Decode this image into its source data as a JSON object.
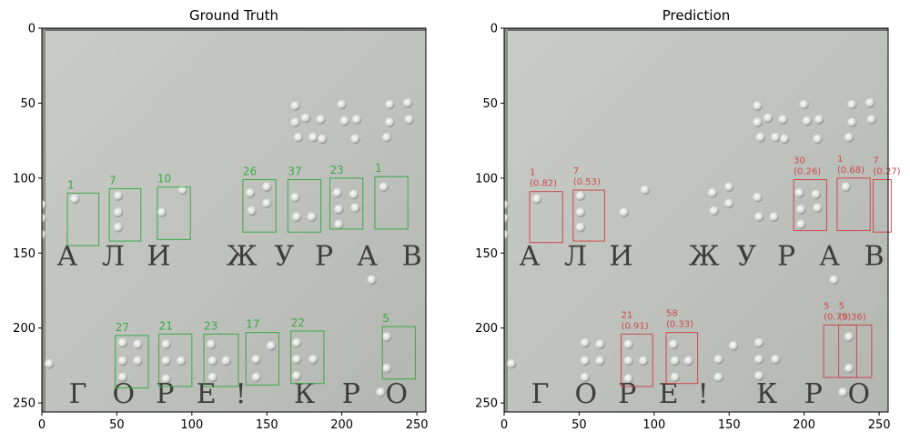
{
  "panels": [
    {
      "title": "Ground Truth",
      "box_color": "#3caa46",
      "boxes": [
        {
          "x0": 17,
          "y0": 110,
          "x1": 38,
          "y1": 145,
          "label": "1"
        },
        {
          "x0": 45,
          "y0": 107,
          "x1": 66,
          "y1": 142,
          "label": "7"
        },
        {
          "x0": 77,
          "y0": 106,
          "x1": 99,
          "y1": 141,
          "label": "10"
        },
        {
          "x0": 134,
          "y0": 101,
          "x1": 156,
          "y1": 136,
          "label": "26"
        },
        {
          "x0": 164,
          "y0": 101,
          "x1": 186,
          "y1": 136,
          "label": "37"
        },
        {
          "x0": 192,
          "y0": 100,
          "x1": 214,
          "y1": 134,
          "label": "23"
        },
        {
          "x0": 222,
          "y0": 99,
          "x1": 244,
          "y1": 134,
          "label": "1"
        },
        {
          "x0": 49,
          "y0": 205,
          "x1": 71,
          "y1": 240,
          "label": "27"
        },
        {
          "x0": 78,
          "y0": 204,
          "x1": 100,
          "y1": 239,
          "label": "21"
        },
        {
          "x0": 108,
          "y0": 204,
          "x1": 131,
          "y1": 239,
          "label": "23"
        },
        {
          "x0": 136,
          "y0": 203,
          "x1": 158,
          "y1": 238,
          "label": "17"
        },
        {
          "x0": 166,
          "y0": 202,
          "x1": 188,
          "y1": 237,
          "label": "22"
        },
        {
          "x0": 227,
          "y0": 199,
          "x1": 249,
          "y1": 234,
          "label": "5"
        }
      ]
    },
    {
      "title": "Prediction",
      "box_color": "#cc4b4b",
      "boxes": [
        {
          "x0": 17,
          "y0": 109,
          "x1": 39,
          "y1": 143,
          "label": "1\n(0.82)"
        },
        {
          "x0": 46,
          "y0": 108,
          "x1": 67,
          "y1": 142,
          "label": "7\n(0.53)"
        },
        {
          "x0": 78,
          "y0": 204,
          "x1": 99,
          "y1": 239,
          "label": "21\n(0.91)"
        },
        {
          "x0": 108,
          "y0": 203,
          "x1": 129,
          "y1": 237,
          "label": "58\n(0.33)"
        },
        {
          "x0": 193,
          "y0": 101,
          "x1": 215,
          "y1": 135,
          "label": "30\n(0.26)"
        },
        {
          "x0": 222,
          "y0": 100,
          "x1": 244,
          "y1": 135,
          "label": "1\n(0.68)"
        },
        {
          "x0": 246,
          "y0": 101,
          "x1": 258,
          "y1": 136,
          "label": "7\n(0.27)"
        },
        {
          "x0": 213,
          "y0": 198,
          "x1": 235,
          "y1": 233,
          "label": "5\n(0.75)"
        },
        {
          "x0": 223,
          "y0": 198,
          "x1": 245,
          "y1": 233,
          "label": "5\n(0.36)"
        }
      ]
    }
  ],
  "x_ticks": [
    0,
    50,
    100,
    150,
    200,
    250
  ],
  "y_ticks": [
    0,
    50,
    100,
    150,
    200,
    250
  ],
  "printed_letters": {
    "row1": [
      {
        "t": "А",
        "x": 10
      },
      {
        "t": "Л",
        "x": 40
      },
      {
        "t": "И",
        "x": 70
      },
      {
        "t": "Ж",
        "x": 123
      },
      {
        "t": "У",
        "x": 155
      },
      {
        "t": "Р",
        "x": 182
      },
      {
        "t": "А",
        "x": 210
      },
      {
        "t": "В",
        "x": 240
      }
    ],
    "row2": [
      {
        "t": "Г",
        "x": 18
      },
      {
        "t": "О",
        "x": 47
      },
      {
        "t": "Р",
        "x": 76
      },
      {
        "t": "Е",
        "x": 103
      },
      {
        "t": "!",
        "x": 129
      },
      {
        "t": "К",
        "x": 168
      },
      {
        "t": "Р",
        "x": 200
      },
      {
        "t": "О",
        "x": 229
      }
    ]
  }
}
